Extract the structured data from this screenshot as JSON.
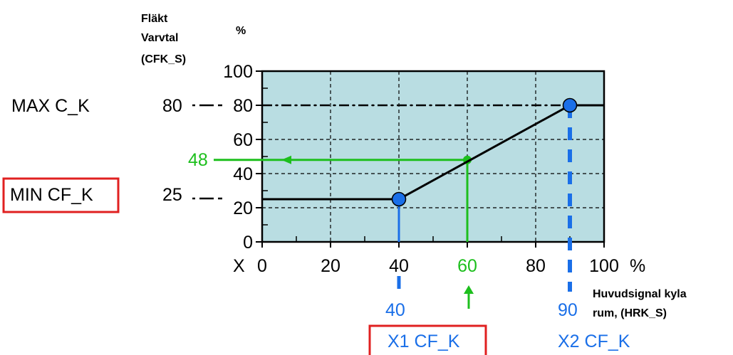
{
  "chart_data": {
    "type": "line",
    "y_axis_title_lines": [
      "Fläkt",
      "Varvtal",
      "(CFK_S)"
    ],
    "y_unit": "%",
    "x_unit": "%",
    "x_axis_prefix": "X",
    "x_axis_title_lines": [
      "Huvudsignal kyla",
      "rum, (HRK_S)"
    ],
    "xlim": [
      0,
      100
    ],
    "ylim": [
      0,
      100
    ],
    "x_ticks": [
      0,
      20,
      40,
      60,
      80,
      100
    ],
    "y_ticks": [
      0,
      20,
      40,
      60,
      80,
      100
    ],
    "grid": true,
    "series": [
      {
        "values_xy": [
          [
            0,
            25
          ],
          [
            40,
            25
          ],
          [
            90,
            80
          ],
          [
            100,
            80
          ]
        ]
      }
    ],
    "points": [
      {
        "x": 40,
        "y": 25
      },
      {
        "x": 90,
        "y": 80
      }
    ],
    "example": {
      "x": 60,
      "y": 48,
      "x_label": "60",
      "y_label": "48"
    },
    "left_labels": {
      "max_name": "MAX C_K",
      "max_value": "80",
      "min_name": "MIN CF_K",
      "min_value": "25"
    },
    "x_markers": [
      {
        "value": "40",
        "name": "X1 CF_K"
      },
      {
        "value": "90",
        "name": "X2 CF_K"
      }
    ],
    "colors": {
      "plot_bg": "#b9dde2",
      "blue": "#1a6fe8",
      "green": "#1dbf1d",
      "red": "#e02020",
      "line": "#000000"
    }
  }
}
